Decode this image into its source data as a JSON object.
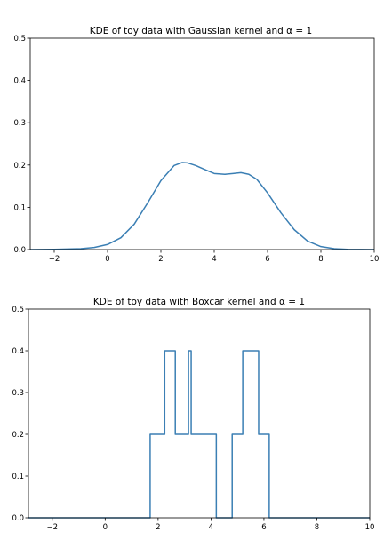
{
  "chart_data": [
    {
      "type": "line",
      "title": "KDE of toy data with Gaussian kernel and α = 1",
      "xlabel": "",
      "ylabel": "",
      "xlim": [
        -2.9,
        10
      ],
      "ylim": [
        0,
        0.5
      ],
      "xticks": [
        -2,
        0,
        2,
        4,
        6,
        8,
        10
      ],
      "yticks": [
        0.0,
        0.1,
        0.2,
        0.3,
        0.4,
        0.5
      ],
      "grid": false,
      "color": "#3b7fb4",
      "series": [
        {
          "x": [
            -2.9,
            -2,
            -1,
            -0.5,
            0,
            0.5,
            1,
            1.5,
            2,
            2.5,
            2.8,
            3,
            3.3,
            3.7,
            4,
            4.4,
            4.7,
            5,
            5.3,
            5.6,
            6,
            6.5,
            7,
            7.5,
            8,
            8.5,
            9,
            10
          ],
          "y": [
            0.0,
            0.0005,
            0.002,
            0.005,
            0.012,
            0.028,
            0.06,
            0.11,
            0.163,
            0.199,
            0.206,
            0.205,
            0.199,
            0.188,
            0.18,
            0.178,
            0.18,
            0.182,
            0.178,
            0.166,
            0.134,
            0.087,
            0.047,
            0.02,
            0.007,
            0.002,
            0.0005,
            0.0
          ]
        }
      ]
    },
    {
      "type": "line",
      "title": "KDE of toy data with Boxcar kernel and α = 1",
      "xlabel": "",
      "ylabel": "",
      "xlim": [
        -2.9,
        10
      ],
      "ylim": [
        0,
        0.5
      ],
      "xticks": [
        -2,
        0,
        2,
        4,
        6,
        8,
        10
      ],
      "yticks": [
        0.0,
        0.1,
        0.2,
        0.3,
        0.4,
        0.5
      ],
      "grid": false,
      "color": "#3b7fb4",
      "series": [
        {
          "x": [
            -2.9,
            1.7,
            1.7,
            2.25,
            2.25,
            2.65,
            2.65,
            3.15,
            3.15,
            3.25,
            3.25,
            4.2,
            4.2,
            4.8,
            4.8,
            5.2,
            5.2,
            5.8,
            5.8,
            6.2,
            6.2,
            10
          ],
          "y": [
            0,
            0,
            0.2,
            0.2,
            0.4,
            0.4,
            0.2,
            0.2,
            0.4,
            0.4,
            0.2,
            0.2,
            0,
            0,
            0.2,
            0.2,
            0.4,
            0.4,
            0.2,
            0.2,
            0,
            0
          ]
        }
      ]
    }
  ]
}
